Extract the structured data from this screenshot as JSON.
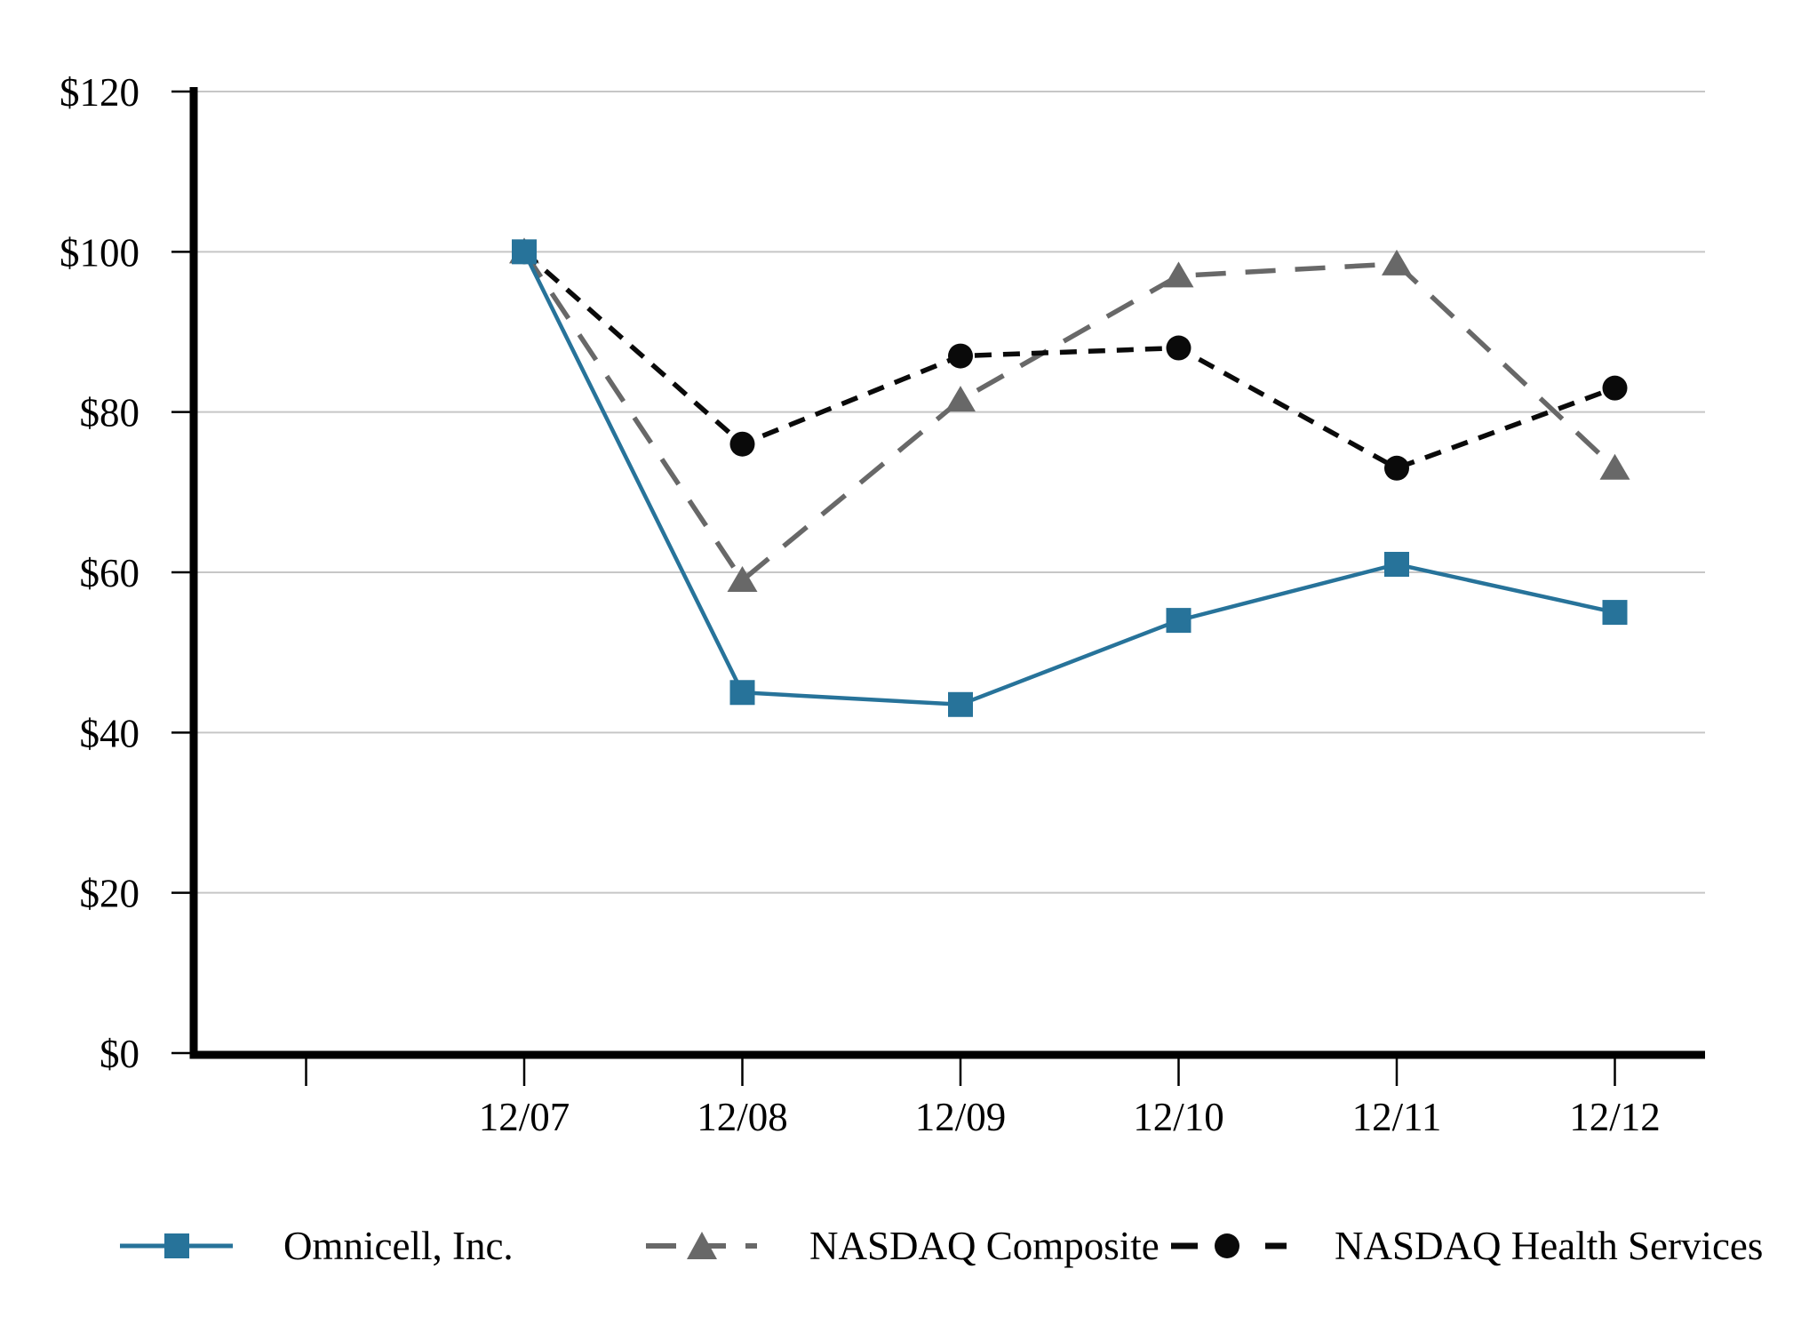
{
  "page": {
    "background": "#ffffff"
  },
  "chart_data": {
    "type": "line",
    "title": "",
    "categories": [
      "12/07",
      "12/08",
      "12/09",
      "12/10",
      "12/11",
      "12/12"
    ],
    "leading_unlabeled_tick": true,
    "ylim": [
      0,
      120
    ],
    "y_tick_interval": 20,
    "y_tick_labels": [
      "$0",
      "$20",
      "$40",
      "$60",
      "$80",
      "$100",
      "$120"
    ],
    "currency_prefix": "$",
    "grid": "horizontal",
    "gridline_color": "#c6c6c6",
    "axis_color": "#000000",
    "legend_position": "bottom",
    "series": [
      {
        "name": "Omnicell, Inc.",
        "marker": "square",
        "line_style": "solid",
        "color": "#27739a",
        "values": [
          100,
          45,
          43.5,
          54,
          61,
          55
        ]
      },
      {
        "name": "NASDAQ Composite",
        "marker": "triangle",
        "line_style": "long-dash",
        "color": "#686868",
        "values": [
          100,
          59,
          81.5,
          97,
          98.5,
          73
        ]
      },
      {
        "name": "NASDAQ Health Services",
        "marker": "circle",
        "line_style": "short-dash",
        "color": "#0a0a0a",
        "values": [
          100,
          76,
          87,
          88,
          73,
          83
        ]
      }
    ]
  }
}
